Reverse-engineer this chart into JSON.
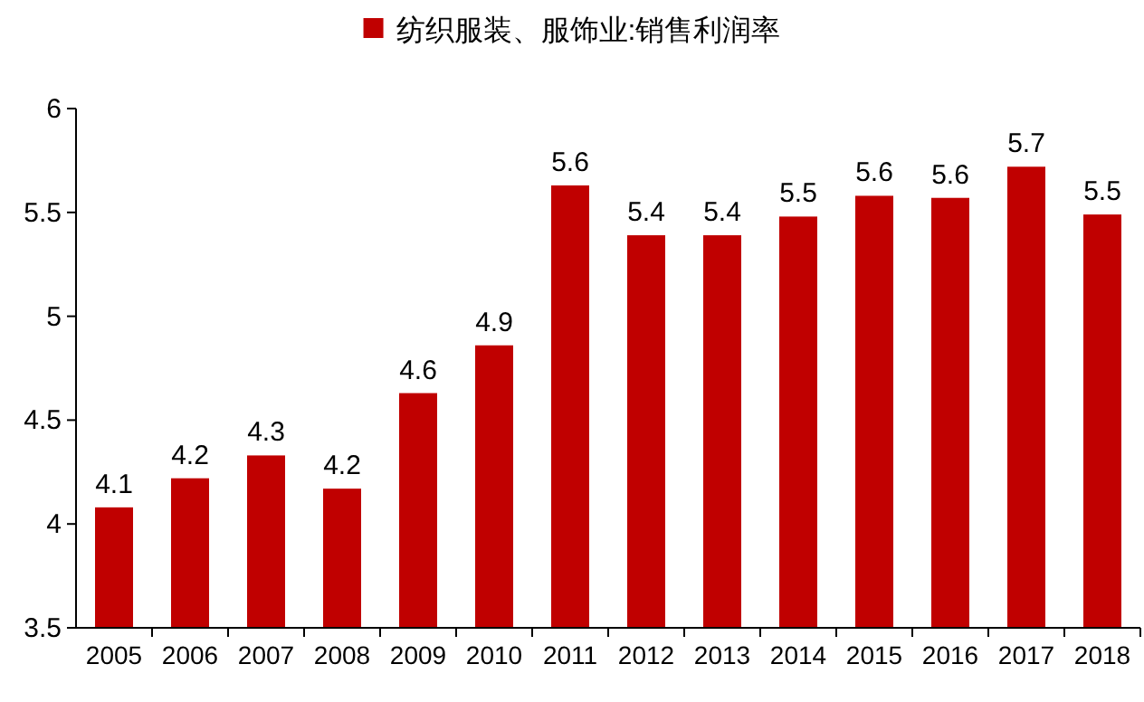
{
  "chart_data": {
    "type": "bar",
    "categories": [
      "2005",
      "2006",
      "2007",
      "2008",
      "2009",
      "2010",
      "2011",
      "2012",
      "2013",
      "2014",
      "2015",
      "2016",
      "2017",
      "2018"
    ],
    "series": [
      {
        "name": "纺织服装、服饰业:销售利润率",
        "color": "#c00000",
        "values": [
          4.08,
          4.22,
          4.33,
          4.17,
          4.63,
          4.86,
          5.63,
          5.39,
          5.39,
          5.48,
          5.58,
          5.57,
          5.72,
          5.49
        ],
        "value_labels": [
          "4.1",
          "4.2",
          "4.3",
          "4.2",
          "4.6",
          "4.9",
          "5.6",
          "5.4",
          "5.4",
          "5.5",
          "5.6",
          "5.6",
          "5.7",
          "5.5"
        ]
      }
    ],
    "ylim": [
      3.5,
      6
    ],
    "yticks": [
      3.5,
      4,
      4.5,
      5,
      5.5,
      6
    ],
    "grid": false,
    "legend": "top"
  }
}
